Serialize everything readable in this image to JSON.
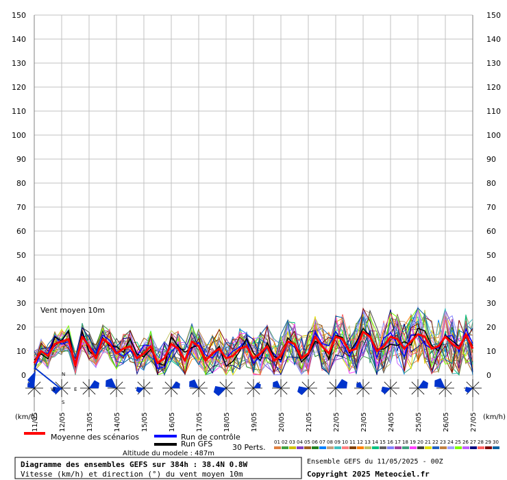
{
  "chart_data": {
    "type": "line",
    "ylim": [
      0,
      150
    ],
    "yticks": [
      0,
      10,
      20,
      30,
      40,
      50,
      60,
      70,
      80,
      90,
      100,
      110,
      120,
      130,
      140,
      150
    ],
    "unit_left": "(km/h)",
    "unit_right": "(km/h)",
    "x_dates": [
      "11/05",
      "12/05",
      "13/05",
      "14/05",
      "15/05",
      "16/05",
      "17/05",
      "18/05",
      "19/05",
      "20/05",
      "21/05",
      "22/05",
      "23/05",
      "24/05",
      "25/05",
      "26/05",
      "27/05"
    ],
    "annotation": "Vent moyen 10m",
    "mean_series": {
      "name": "Moyenne des scénarios",
      "color": "#ff0000",
      "hours": [
        0,
        6,
        12,
        18,
        24,
        30,
        36,
        42,
        48,
        54,
        60,
        66,
        72,
        78,
        84,
        90,
        96,
        102,
        108,
        114,
        120,
        126,
        132,
        138,
        144,
        150,
        156,
        162,
        168,
        174,
        180,
        186,
        192,
        198,
        204,
        210,
        216,
        222,
        228,
        234,
        240,
        246,
        252,
        258,
        264,
        270,
        276,
        282,
        288,
        294,
        300,
        306,
        312,
        318,
        324,
        330,
        336,
        342,
        348,
        354,
        360,
        366,
        372,
        378,
        384
      ],
      "values": [
        5,
        10,
        8,
        13,
        14,
        15,
        4,
        16,
        12,
        7,
        15,
        13,
        9,
        11,
        12,
        7,
        9,
        12,
        5,
        7,
        13,
        11,
        6,
        14,
        12,
        6,
        9,
        11,
        7,
        8,
        11,
        12,
        7,
        9,
        12,
        6,
        8,
        14,
        13,
        7,
        9,
        16,
        12,
        9,
        16,
        15,
        10,
        11,
        18,
        16,
        10,
        12,
        16,
        15,
        11,
        14,
        17,
        16,
        11,
        12,
        16,
        13,
        11,
        17,
        11
      ]
    },
    "control_series": {
      "name": "Run de contrôle",
      "color": "#0000ff"
    },
    "gfs_series": {
      "name": "Run GFS",
      "color": "#000000"
    },
    "perturbations_label": "30 Perts.",
    "perturbation_ids": [
      "01",
      "02",
      "03",
      "04",
      "05",
      "06",
      "07",
      "08",
      "09",
      "10",
      "11",
      "12",
      "13",
      "14",
      "15",
      "16",
      "17",
      "18",
      "19",
      "20",
      "21",
      "22",
      "23",
      "24",
      "25",
      "26",
      "27",
      "28",
      "29",
      "30"
    ],
    "perturbation_colors": [
      "#e08040",
      "#40a040",
      "#d0c000",
      "#8040c0",
      "#a06020",
      "#208020",
      "#0080ff",
      "#c0a080",
      "#40c0c0",
      "#ff8080",
      "#804000",
      "#ff8000",
      "#c0c060",
      "#00c080",
      "#606060",
      "#8080ff",
      "#a040a0",
      "#40a080",
      "#ff40ff",
      "#404040",
      "#e0e000",
      "#2060c0",
      "#c08040",
      "#a0a0ff",
      "#80ff00",
      "#c060ff",
      "#000080",
      "#ff6060",
      "#800000",
      "#0060a0"
    ],
    "wind_direction_label_N": "N",
    "wind_direction_label_S": "S",
    "wind_direction_label_W": "W",
    "wind_direction_label_E": "E"
  },
  "footer": {
    "altitude": "Altitude du modele : 487m",
    "title": "Diagramme des ensembles GEFS sur 384h : 38.4N 0.8W",
    "subtitle": "Vitesse (km/h) et direction (°) du vent moyen 10m",
    "run": "Ensemble GEFS du 11/05/2025 - 00Z",
    "copyright": "Copyright 2025 Meteociel.fr"
  }
}
